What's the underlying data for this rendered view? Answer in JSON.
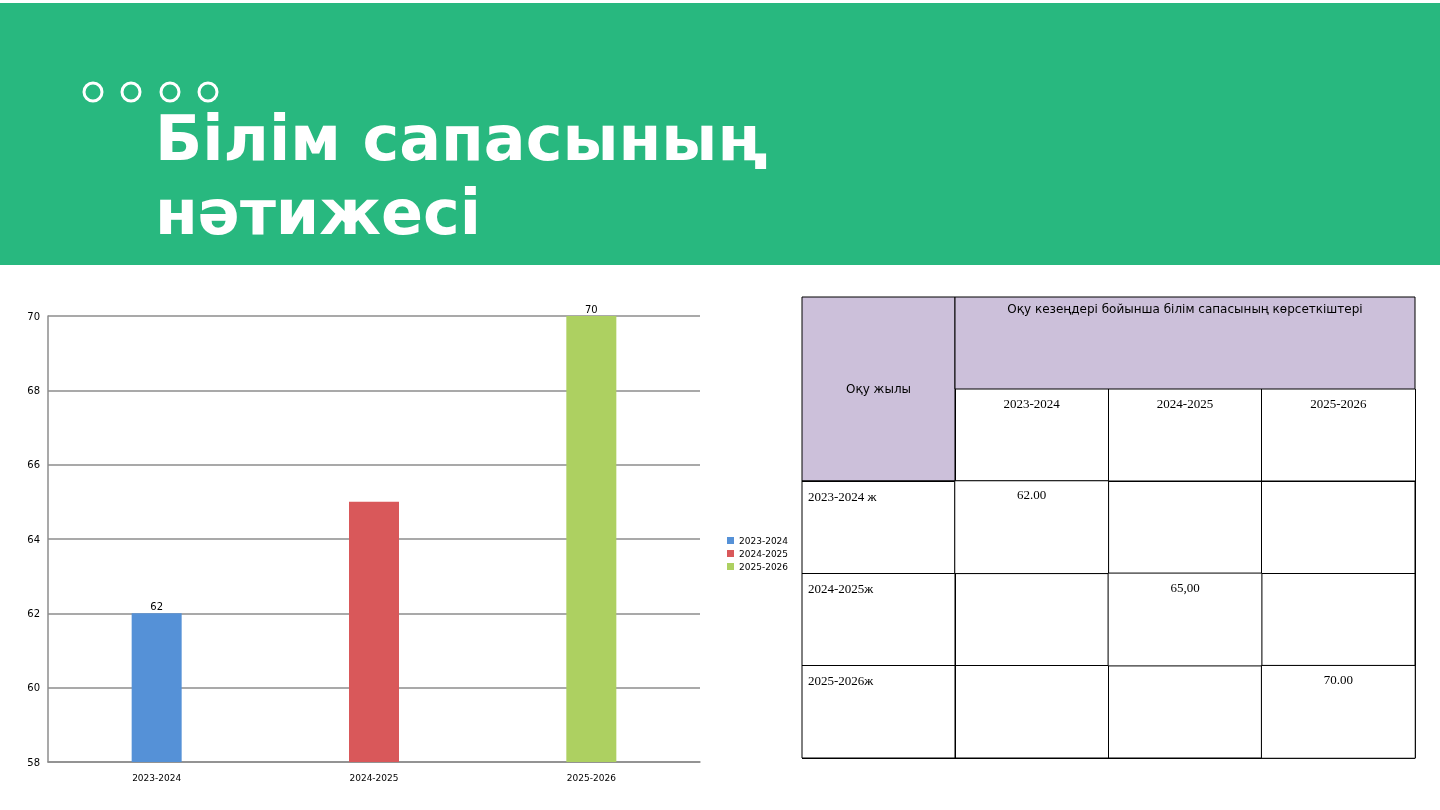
{
  "chart_data": [
    {
      "type": "bar",
      "title": "Білім сапасының нәтижесі",
      "categories": [
        "2023-2024",
        "2024-2025",
        "2025-2026"
      ],
      "series": [
        {
          "name": "2023-2024",
          "color": "#5591d7",
          "values": [
            62,
            null,
            null
          ],
          "value_labels": [
            "62",
            null,
            null
          ]
        },
        {
          "name": "2024-2025",
          "color": "#d9585a",
          "values": [
            null,
            65,
            null
          ]
        },
        {
          "name": "2025-2026",
          "color": "#add061",
          "values": [
            null,
            null,
            70
          ],
          "value_labels": [
            null,
            null,
            "70"
          ]
        }
      ],
      "ylim": [
        58,
        70
      ],
      "yticks": [
        58,
        60,
        62,
        64,
        66,
        68,
        70
      ],
      "grid": "y",
      "legend": "right"
    },
    {
      "type": "heatmap",
      "xlabel": "Оқу кезеңдері бойынша білім сапасының көрсеткіштері",
      "ylabel": "Оқу жылы",
      "categories": [
        "2023-2024",
        "2024-2025",
        "2025-2026"
      ],
      "y_categories": [
        "2023-2024 ж",
        "2024-2025ж",
        "2025-2026ж"
      ],
      "cells": [
        [
          62,
          null,
          null
        ],
        [
          null,
          65,
          null
        ],
        [
          null,
          null,
          70
        ]
      ],
      "cell_labels": [
        [
          "62.00",
          null,
          null
        ],
        [
          null,
          "65,00",
          null
        ],
        [
          null,
          null,
          "70.00"
        ]
      ],
      "color": "#ffffff"
    }
  ]
}
